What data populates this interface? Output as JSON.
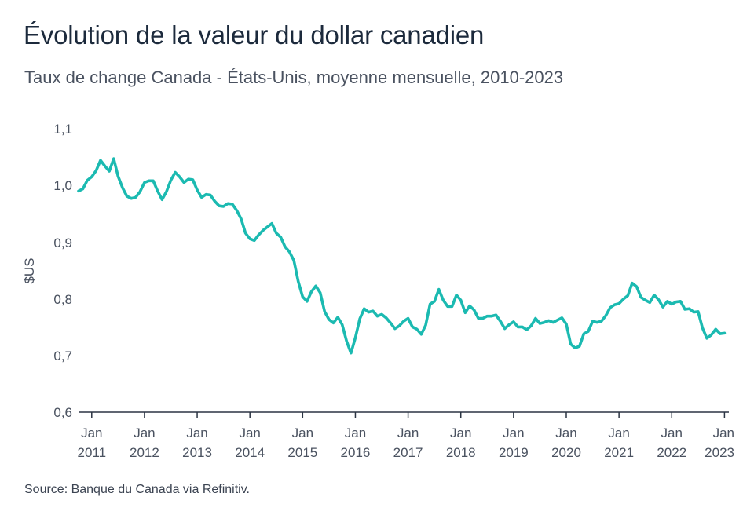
{
  "title": "Évolution de la valeur du dollar canadien",
  "subtitle": "Taux de change Canada - États-Unis, moyenne mensuelle, 2010-2023",
  "source": "Source: Banque du Canada via Refinitiv.",
  "colors": {
    "line": "#1bbab1",
    "axis": "#2b3443",
    "text": "#4a5260"
  },
  "chart_data": {
    "type": "line",
    "title": "Évolution de la valeur du dollar canadien",
    "subtitle": "Taux de change Canada - États-Unis, moyenne mensuelle, 2010-2023",
    "ylabel": "$US",
    "xlabel": "",
    "ylim": [
      0.6,
      1.1
    ],
    "yticks": [
      "0,6",
      "0,7",
      "0,8",
      "0,9",
      "1,0",
      "1,1"
    ],
    "ytick_values": [
      0.6,
      0.7,
      0.8,
      0.9,
      1.0,
      1.1
    ],
    "xlim": [
      "2010-10",
      "2023-02"
    ],
    "xticks": [
      {
        "date": "2011-01",
        "line1": "Jan",
        "line2": "2011"
      },
      {
        "date": "2012-01",
        "line1": "Jan",
        "line2": "2012"
      },
      {
        "date": "2013-01",
        "line1": "Jan",
        "line2": "2013"
      },
      {
        "date": "2014-01",
        "line1": "Jan",
        "line2": "2014"
      },
      {
        "date": "2015-01",
        "line1": "Jan",
        "line2": "2015"
      },
      {
        "date": "2016-01",
        "line1": "Jan",
        "line2": "2016"
      },
      {
        "date": "2017-01",
        "line1": "Jan",
        "line2": "2017"
      },
      {
        "date": "2018-01",
        "line1": "Jan",
        "line2": "2018"
      },
      {
        "date": "2019-01",
        "line1": "Jan",
        "line2": "2019"
      },
      {
        "date": "2020-01",
        "line1": "Jan",
        "line2": "2020"
      },
      {
        "date": "2021-01",
        "line1": "Jan",
        "line2": "2021"
      },
      {
        "date": "2022-01",
        "line1": "Jan",
        "line2": "2022"
      },
      {
        "date": "2023-01",
        "line1": "Jan",
        "line2": "2023"
      }
    ],
    "grid": false,
    "series": [
      {
        "start": "2010-10",
        "values": [
          0.989,
          0.993,
          1.008,
          1.014,
          1.025,
          1.043,
          1.033,
          1.024,
          1.046,
          1.015,
          0.995,
          0.98,
          0.976,
          0.978,
          0.988,
          1.004,
          1.007,
          1.007,
          0.989,
          0.974,
          0.988,
          1.008,
          1.022,
          1.014,
          1.004,
          1.01,
          1.009,
          0.991,
          0.978,
          0.983,
          0.982,
          0.971,
          0.963,
          0.962,
          0.967,
          0.966,
          0.955,
          0.94,
          0.915,
          0.905,
          0.902,
          0.912,
          0.92,
          0.926,
          0.932,
          0.915,
          0.908,
          0.891,
          0.882,
          0.867,
          0.83,
          0.803,
          0.795,
          0.812,
          0.822,
          0.81,
          0.777,
          0.763,
          0.757,
          0.767,
          0.754,
          0.725,
          0.704,
          0.731,
          0.764,
          0.782,
          0.776,
          0.778,
          0.769,
          0.772,
          0.766,
          0.757,
          0.747,
          0.752,
          0.76,
          0.765,
          0.75,
          0.746,
          0.737,
          0.753,
          0.79,
          0.795,
          0.816,
          0.797,
          0.786,
          0.786,
          0.806,
          0.797,
          0.775,
          0.787,
          0.78,
          0.765,
          0.765,
          0.769,
          0.769,
          0.771,
          0.76,
          0.747,
          0.754,
          0.759,
          0.75,
          0.75,
          0.745,
          0.752,
          0.765,
          0.756,
          0.758,
          0.761,
          0.758,
          0.762,
          0.766,
          0.755,
          0.72,
          0.713,
          0.716,
          0.738,
          0.742,
          0.76,
          0.758,
          0.76,
          0.77,
          0.784,
          0.789,
          0.791,
          0.799,
          0.805,
          0.827,
          0.821,
          0.802,
          0.797,
          0.793,
          0.806,
          0.798,
          0.785,
          0.795,
          0.79,
          0.794,
          0.795,
          0.781,
          0.782,
          0.776,
          0.777,
          0.748,
          0.73,
          0.736,
          0.746,
          0.738,
          0.739
        ]
      }
    ]
  }
}
